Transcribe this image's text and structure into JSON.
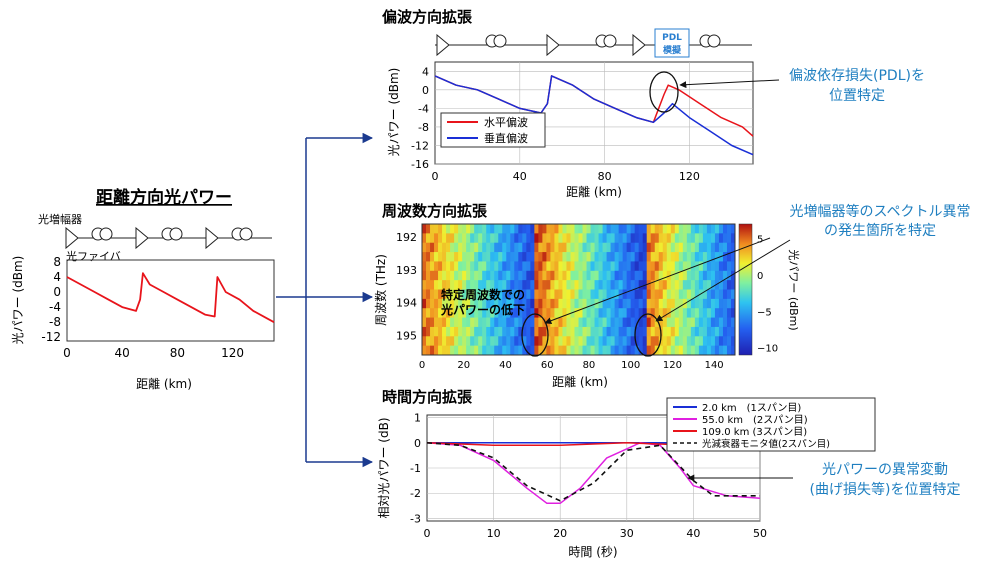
{
  "main": {
    "title": "距離方向光パワー",
    "label_amp": "光増幅器",
    "label_fiber": "光ファイバ",
    "ylabel": "光パワー (dBm)",
    "xlabel": "距離 (km)",
    "yticks": [
      "8",
      "4",
      "0",
      "-4",
      "-8",
      "-12"
    ],
    "xticks": [
      "0",
      "40",
      "80",
      "120"
    ]
  },
  "pdl": {
    "title": "偏波方向拡張",
    "box_label_1": "PDL",
    "box_label_2": "模擬",
    "ylabel": "光パワー (dBm)",
    "xlabel": "距離 (km)",
    "yticks": [
      "4",
      "0",
      "-4",
      "-8",
      "-12",
      "-16"
    ],
    "ytop": "4",
    "ytick_list": [
      "4",
      "0",
      "-4",
      "-8",
      "-12",
      "-16"
    ],
    "xticks": [
      "0",
      "40",
      "80",
      "120"
    ],
    "legend": [
      "水平偏波",
      "垂直偏波"
    ],
    "annotation_1": "偏波依存損失(PDL)を",
    "annotation_2": "位置特定"
  },
  "freq": {
    "title": "周波数方向拡張",
    "ylabel": "周波数 (THz)",
    "xlabel": "距離 (km)",
    "yticks": [
      "192",
      "193",
      "194",
      "195"
    ],
    "xticks": [
      "0",
      "20",
      "40",
      "60",
      "80",
      "100",
      "120",
      "140"
    ],
    "cbar_ticks": [
      "5",
      "0",
      "−5",
      "−10"
    ],
    "cbar_label": "光パワー (dBm)",
    "inner_1": "特定周波数での",
    "inner_2": "光パワーの低下",
    "annotation_1": "光増幅器等のスペクトル異常",
    "annotation_2": "の発生箇所を特定"
  },
  "time": {
    "title": "時間方向拡張",
    "ylabel": "相対光パワー (dB)",
    "xlabel": "時間 (秒)",
    "yticks": [
      "1",
      "0",
      "-1",
      "-2",
      "-3"
    ],
    "xticks": [
      "0",
      "10",
      "20",
      "30",
      "40",
      "50"
    ],
    "legend": [
      "2.0 km　(1スパン目)",
      "55.0 km　(2スパン目)",
      "109.0 km (3スパン目)",
      "光減衰器モニタ値(2スパン目)"
    ],
    "annotation_1": "光パワーの異常変動",
    "annotation_2": "(曲げ損失等)を位置特定"
  },
  "colors": {
    "red": "#e8141b",
    "blue": "#1a2fd6",
    "magenta": "#e020e0",
    "arrow": "#1b3a8f",
    "annot": "#1f7fc0"
  },
  "chart_data": [
    {
      "type": "line",
      "title": "距離方向光パワー",
      "xlabel": "距離 (km)",
      "ylabel": "光パワー (dBm)",
      "xlim": [
        0,
        150
      ],
      "ylim": [
        -12,
        8
      ],
      "series": [
        {
          "values_xy": [
            [
              0,
              4
            ],
            [
              10,
              2
            ],
            [
              20,
              0
            ],
            [
              30,
              -2
            ],
            [
              40,
              -4
            ],
            [
              50,
              -5
            ],
            [
              53,
              -2
            ],
            [
              55,
              5
            ],
            [
              60,
              2
            ],
            [
              70,
              0
            ],
            [
              80,
              -2
            ],
            [
              90,
              -4
            ],
            [
              100,
              -6
            ],
            [
              107,
              -6.5
            ],
            [
              109,
              4
            ],
            [
              115,
              0
            ],
            [
              125,
              -2
            ],
            [
              135,
              -5
            ],
            [
              145,
              -7
            ],
            [
              150,
              -8
            ]
          ]
        }
      ]
    },
    {
      "type": "line",
      "title": "偏波方向拡張",
      "xlabel": "距離 (km)",
      "ylabel": "光パワー (dBm)",
      "xlim": [
        0,
        150
      ],
      "ylim": [
        -16,
        4
      ],
      "series": [
        {
          "name": "水平偏波",
          "values_xy": [
            [
              0,
              3
            ],
            [
              10,
              1
            ],
            [
              20,
              0
            ],
            [
              30,
              -2
            ],
            [
              40,
              -4
            ],
            [
              50,
              -5
            ],
            [
              53,
              -3
            ],
            [
              55,
              3
            ],
            [
              65,
              1
            ],
            [
              75,
              -2
            ],
            [
              85,
              -4
            ],
            [
              95,
              -6
            ],
            [
              103,
              -7
            ],
            [
              108,
              -1
            ],
            [
              110,
              1
            ],
            [
              115,
              0
            ],
            [
              125,
              -3
            ],
            [
              135,
              -6
            ],
            [
              145,
              -8
            ],
            [
              150,
              -10
            ]
          ]
        },
        {
          "name": "垂直偏波",
          "values_xy": [
            [
              0,
              3
            ],
            [
              10,
              1
            ],
            [
              20,
              0
            ],
            [
              30,
              -2
            ],
            [
              40,
              -4
            ],
            [
              50,
              -5
            ],
            [
              53,
              -3
            ],
            [
              55,
              3
            ],
            [
              65,
              1
            ],
            [
              75,
              -2
            ],
            [
              85,
              -4
            ],
            [
              95,
              -6
            ],
            [
              103,
              -7
            ],
            [
              108,
              -5
            ],
            [
              112,
              -3
            ],
            [
              120,
              -6
            ],
            [
              130,
              -9
            ],
            [
              140,
              -12
            ],
            [
              150,
              -14
            ]
          ]
        }
      ]
    },
    {
      "type": "heatmap",
      "title": "周波数方向拡張",
      "xlabel": "距離 (km)",
      "ylabel": "周波数 (THz)",
      "xlim": [
        0,
        150
      ],
      "ylim": [
        191.6,
        195.6
      ],
      "colorbar": {
        "label": "光パワー (dBm)",
        "range": [
          -11,
          7
        ]
      }
    },
    {
      "type": "line",
      "title": "時間方向拡張",
      "xlabel": "時間 (秒)",
      "ylabel": "相対光パワー (dB)",
      "xlim": [
        0,
        50
      ],
      "ylim": [
        -3,
        1
      ],
      "series": [
        {
          "name": "2.0 km　(1スパン目)",
          "values_xy": [
            [
              0,
              0
            ],
            [
              10,
              0
            ],
            [
              20,
              0
            ],
            [
              30,
              0
            ],
            [
              40,
              0
            ],
            [
              50,
              0
            ]
          ]
        },
        {
          "name": "55.0 km　(2スパン目)",
          "values_xy": [
            [
              0,
              0
            ],
            [
              5,
              -0.1
            ],
            [
              10,
              -0.7
            ],
            [
              15,
              -1.8
            ],
            [
              18,
              -2.4
            ],
            [
              20,
              -2.4
            ],
            [
              23,
              -1.8
            ],
            [
              27,
              -0.6
            ],
            [
              32,
              0
            ],
            [
              35,
              -0.1
            ],
            [
              38,
              -1
            ],
            [
              40,
              -1.7
            ],
            [
              45,
              -2.1
            ],
            [
              50,
              -2.2
            ]
          ]
        },
        {
          "name": "109.0 km (3スパン目)",
          "values_xy": [
            [
              0,
              0
            ],
            [
              10,
              -0.1
            ],
            [
              20,
              -0.1
            ],
            [
              30,
              0
            ],
            [
              40,
              -0.1
            ],
            [
              50,
              -0.1
            ]
          ]
        },
        {
          "name": "光減衰器モニタ値(2スパン目)",
          "values_xy": [
            [
              0,
              0
            ],
            [
              5,
              -0.1
            ],
            [
              10,
              -0.6
            ],
            [
              15,
              -1.7
            ],
            [
              20,
              -2.3
            ],
            [
              25,
              -1.6
            ],
            [
              30,
              -0.3
            ],
            [
              35,
              -0.1
            ],
            [
              40,
              -1.5
            ],
            [
              43,
              -2.1
            ],
            [
              50,
              -2.1
            ]
          ]
        }
      ]
    }
  ]
}
